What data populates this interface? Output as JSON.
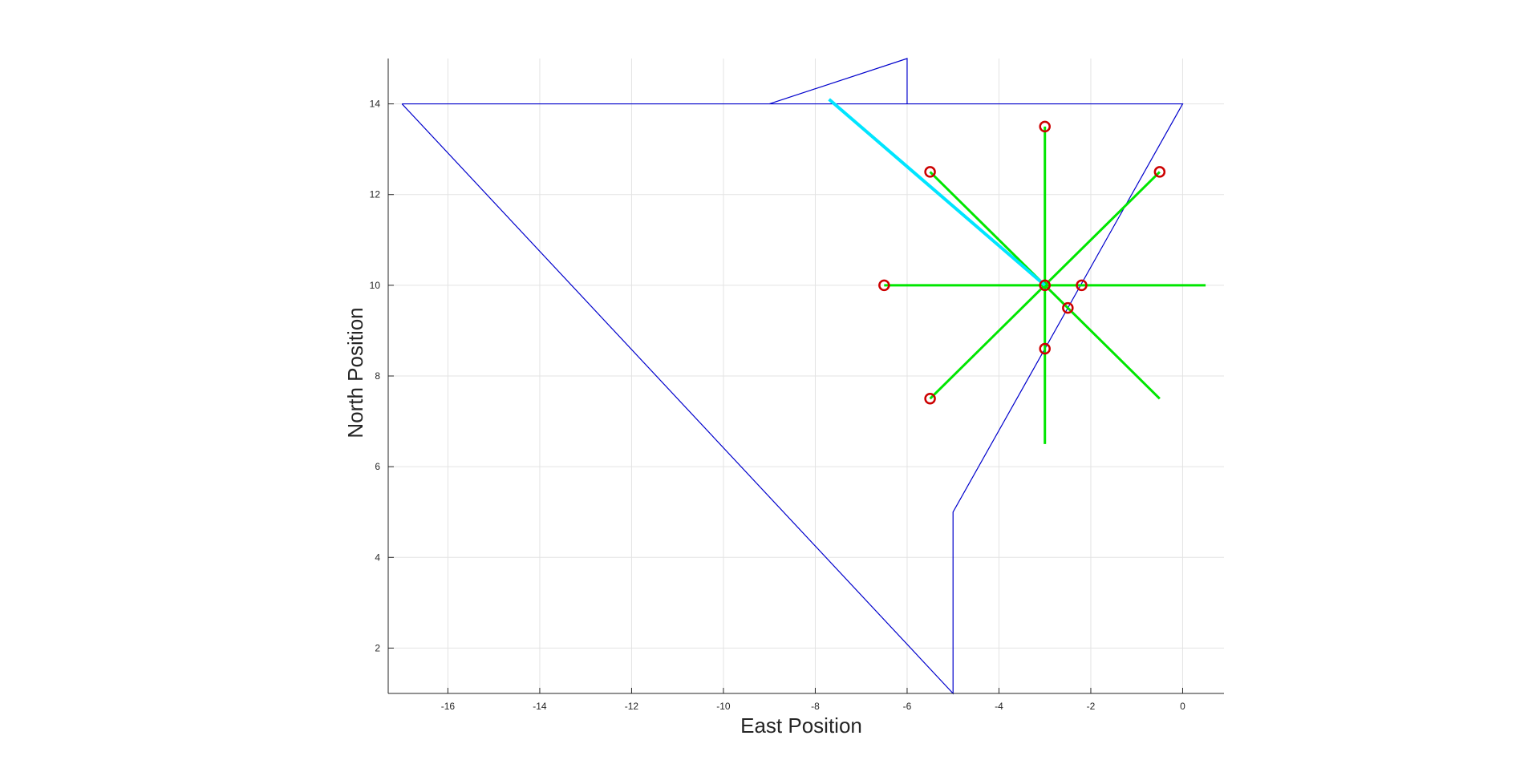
{
  "chart_data": {
    "type": "line",
    "title": "",
    "xlabel": "East Position",
    "ylabel": "North Position",
    "xlim": [
      -17.3,
      0.9
    ],
    "ylim": [
      1,
      15
    ],
    "grid": true,
    "xticks": [
      -16,
      -14,
      -12,
      -10,
      -8,
      -6,
      -4,
      -2,
      0
    ],
    "yticks": [
      2,
      4,
      6,
      8,
      10,
      12,
      14
    ],
    "boundary": {
      "color": "#0000cc",
      "points": [
        [
          -17,
          14
        ],
        [
          0,
          14
        ],
        [
          -5,
          5
        ],
        [
          -5,
          1
        ],
        [
          -17,
          14
        ]
      ]
    },
    "protrusion": {
      "color": "#0000cc",
      "points": [
        [
          -9,
          14
        ],
        [
          -6,
          15
        ],
        [
          -6,
          14
        ]
      ]
    },
    "heading_line": {
      "color": "#00e5ff",
      "points": [
        [
          -3,
          10
        ],
        [
          -7.7,
          14.1
        ]
      ]
    },
    "center": [
      -3,
      10
    ],
    "rays": {
      "color": "#00e600",
      "endpoints": [
        [
          -3,
          13.5
        ],
        [
          -5.5,
          12.5
        ],
        [
          -0.5,
          12.5
        ],
        [
          -6.5,
          10
        ],
        [
          0.5,
          10
        ],
        [
          -5.5,
          7.5
        ],
        [
          -0.5,
          7.5
        ],
        [
          -3,
          6.5
        ]
      ]
    },
    "markers": {
      "color": "#cc0000",
      "points": [
        [
          -3,
          13.5
        ],
        [
          -5.5,
          12.5
        ],
        [
          -0.5,
          12.5
        ],
        [
          -6.5,
          10
        ],
        [
          -3,
          10
        ],
        [
          -2.2,
          10
        ],
        [
          -2.5,
          9.5
        ],
        [
          -3,
          8.6
        ],
        [
          -5.5,
          7.5
        ]
      ]
    }
  }
}
